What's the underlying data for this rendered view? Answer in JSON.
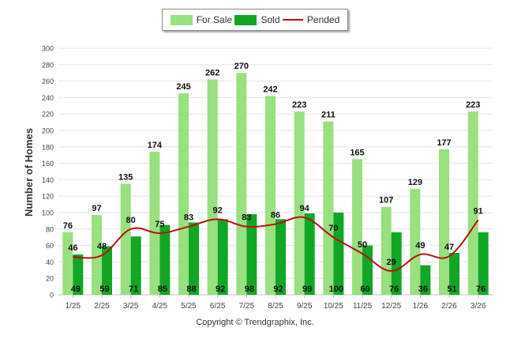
{
  "chart_data": {
    "type": "bar",
    "title": "",
    "xlabel": "",
    "ylabel": "Number of Homes",
    "ylim": [
      0,
      300
    ],
    "ytick_step": 20,
    "categories": [
      "1/25",
      "2/25",
      "3/25",
      "4/25",
      "5/25",
      "6/25",
      "7/25",
      "8/25",
      "9/25",
      "10/25",
      "11/25",
      "12/25",
      "1/26",
      "2/26",
      "3/26"
    ],
    "series": [
      {
        "name": "For Sale",
        "kind": "bar",
        "color": "#99e080",
        "values": [
          76,
          97,
          135,
          174,
          245,
          262,
          270,
          242,
          223,
          211,
          165,
          107,
          129,
          177,
          223
        ]
      },
      {
        "name": "Sold",
        "kind": "bar",
        "color": "#11a626",
        "values": [
          49,
          59,
          71,
          85,
          88,
          92,
          98,
          92,
          99,
          100,
          60,
          76,
          36,
          51,
          76
        ]
      },
      {
        "name": "Pended",
        "kind": "line",
        "color": "#bb1111",
        "values": [
          46,
          48,
          80,
          75,
          83,
          92,
          83,
          86,
          94,
          70,
          50,
          29,
          49,
          47,
          91
        ]
      }
    ],
    "legend_position": "top-center",
    "footer": "Copyright © Trendgraphix, Inc."
  }
}
